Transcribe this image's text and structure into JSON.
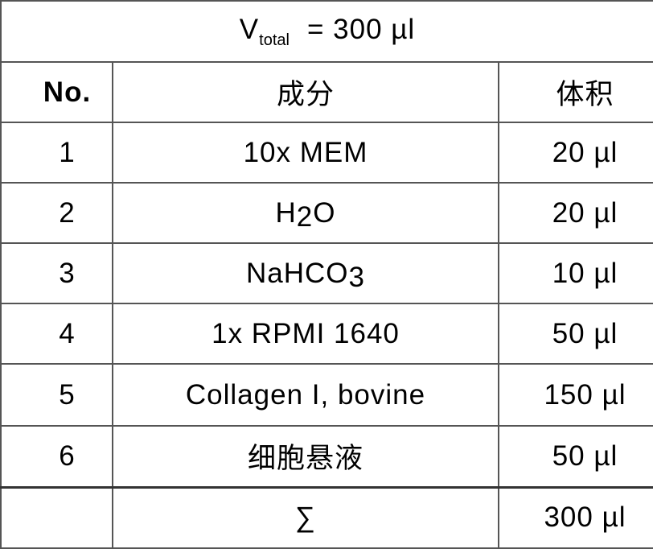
{
  "title": {
    "symbol": "V",
    "subscript": "total",
    "equals": "= 300 µl"
  },
  "headers": {
    "no": "No.",
    "component": "成分",
    "volume": "体积"
  },
  "rows": [
    {
      "no": "1",
      "component": "10x MEM",
      "volume": "20 µl"
    },
    {
      "no": "2",
      "component_parts": [
        "H",
        "2",
        "O"
      ],
      "volume": "20 µl"
    },
    {
      "no": "3",
      "component_parts": [
        "NaHCO",
        "3"
      ],
      "volume": "10 µl"
    },
    {
      "no": "4",
      "component": "1x RPMI 1640",
      "volume": "50 µl"
    },
    {
      "no": "5",
      "component": "Collagen I, bovine",
      "volume": "150 µl"
    },
    {
      "no": "6",
      "component": "细胞悬液",
      "volume": "50 µl"
    }
  ],
  "total": {
    "label": "∑",
    "volume": "300 µl"
  }
}
